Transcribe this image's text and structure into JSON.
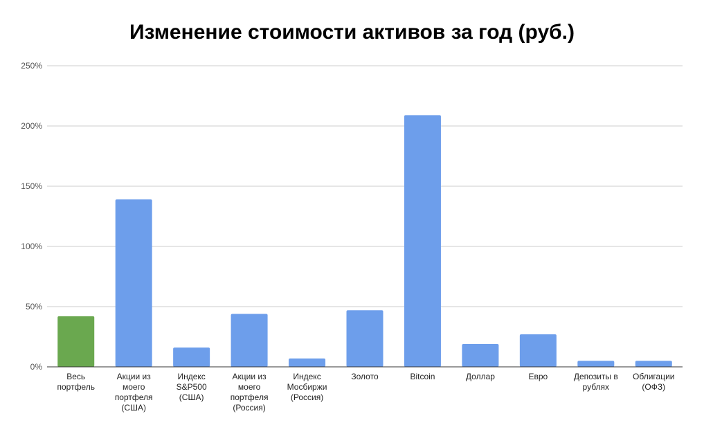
{
  "chart_data": {
    "type": "bar",
    "title": "Изменение стоимости активов за год (руб.)",
    "xlabel": "",
    "ylabel": "",
    "ylim": [
      0,
      250
    ],
    "y_ticks": [
      "0%",
      "50%",
      "100%",
      "150%",
      "200%",
      "250%"
    ],
    "y_tick_values": [
      0,
      50,
      100,
      150,
      200,
      250
    ],
    "grid": true,
    "legend": "none",
    "categories": [
      "Весь портфель",
      "Акции из моего портфеля (США)",
      "Индекс S&P500 (США)",
      "Акции из моего портфеля (Россия)",
      "Индекс Мосбиржи (Россия)",
      "Золото",
      "Bitcoin",
      "Доллар",
      "Евро",
      "Депозиты в рублях",
      "Облигации (ОФЗ)"
    ],
    "category_lines": [
      [
        "Весь",
        "портфель"
      ],
      [
        "Акции из",
        "моего",
        "портфеля",
        "(США)"
      ],
      [
        "Индекс",
        "S&P500",
        "(США)"
      ],
      [
        "Акции из",
        "моего",
        "портфеля",
        "(Россия)"
      ],
      [
        "Индекс",
        "Мосбиржи",
        "(Россия)"
      ],
      [
        "Золото"
      ],
      [
        "Bitcoin"
      ],
      [
        "Доллар"
      ],
      [
        "Евро"
      ],
      [
        "Депозиты в",
        "рублях"
      ],
      [
        "Облигации",
        "(ОФЗ)"
      ]
    ],
    "values": [
      42,
      139,
      16,
      44,
      7,
      47,
      209,
      19,
      27,
      5,
      5
    ],
    "colors": [
      "#6aa84f",
      "#6d9eeb",
      "#6d9eeb",
      "#6d9eeb",
      "#6d9eeb",
      "#6d9eeb",
      "#6d9eeb",
      "#6d9eeb",
      "#6d9eeb",
      "#6d9eeb",
      "#6d9eeb"
    ]
  }
}
